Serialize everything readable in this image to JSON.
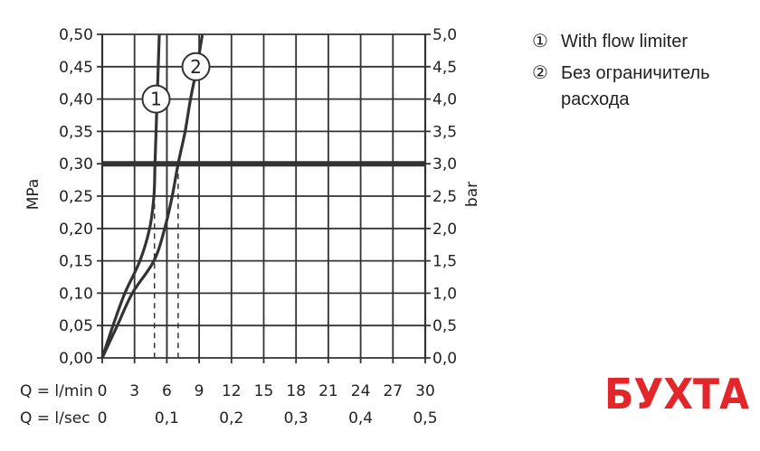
{
  "chart_data": {
    "type": "line",
    "title": "",
    "xlabel": "Q = l/min",
    "xlabel_secondary": "Q = l/sec",
    "ylabel": "MPa",
    "ylabel_right": "bar",
    "xlim": [
      0,
      30
    ],
    "ylim": [
      0,
      0.5
    ],
    "grid": true,
    "x_ticks": [
      "0",
      "3",
      "6",
      "9",
      "12",
      "15",
      "18",
      "21",
      "24",
      "27",
      "30"
    ],
    "x_ticks_secondary": [
      {
        "q": 0,
        "label": "0"
      },
      {
        "q": 6,
        "label": "0,1"
      },
      {
        "q": 12,
        "label": "0,2"
      },
      {
        "q": 18,
        "label": "0,3"
      },
      {
        "q": 24,
        "label": "0,4"
      },
      {
        "q": 30,
        "label": "0,5"
      }
    ],
    "y_ticks": [
      "0,00",
      "0,05",
      "0,10",
      "0,15",
      "0,20",
      "0,25",
      "0,30",
      "0,35",
      "0,40",
      "0,45",
      "0,50"
    ],
    "y_ticks_right": [
      "0,0",
      "0,5",
      "1,0",
      "1,5",
      "2,0",
      "2,5",
      "3,0",
      "3,5",
      "4,0",
      "4,5",
      "5,0"
    ],
    "reference_line": {
      "y": 0.3
    },
    "reference_vertical": {
      "x": 6
    },
    "series": [
      {
        "name": "With flow limiter",
        "marker": "1",
        "label_at": [
          5.0,
          0.4
        ],
        "x": [
          0,
          1.0,
          2.1,
          3.5,
          4.4,
          4.8,
          4.9,
          5.0,
          5.1,
          5.2,
          5.3
        ],
        "y": [
          0,
          0.05,
          0.1,
          0.15,
          0.2,
          0.25,
          0.3,
          0.35,
          0.4,
          0.45,
          0.5
        ],
        "drop_at_ref": 4.85
      },
      {
        "name": "Без ограничитель расхода",
        "marker": "2",
        "label_at": [
          8.7,
          0.45
        ],
        "x": [
          0,
          1.4,
          2.8,
          4.8,
          5.8,
          6.5,
          7.05,
          7.7,
          8.2,
          8.8,
          9.3
        ],
        "y": [
          0,
          0.05,
          0.1,
          0.15,
          0.2,
          0.25,
          0.3,
          0.35,
          0.4,
          0.45,
          0.5
        ],
        "drop_at_ref": 7.05
      }
    ],
    "legend": {
      "placement": "top-right",
      "items": [
        {
          "marker": "①",
          "lines": [
            "With flow limiter"
          ]
        },
        {
          "marker": "②",
          "lines": [
            "Без ограничитель",
            "расхода"
          ]
        }
      ]
    },
    "colors": {
      "line": "#333333",
      "logo": "#e3262a"
    }
  },
  "logo": {
    "text": "БУХТА"
  }
}
